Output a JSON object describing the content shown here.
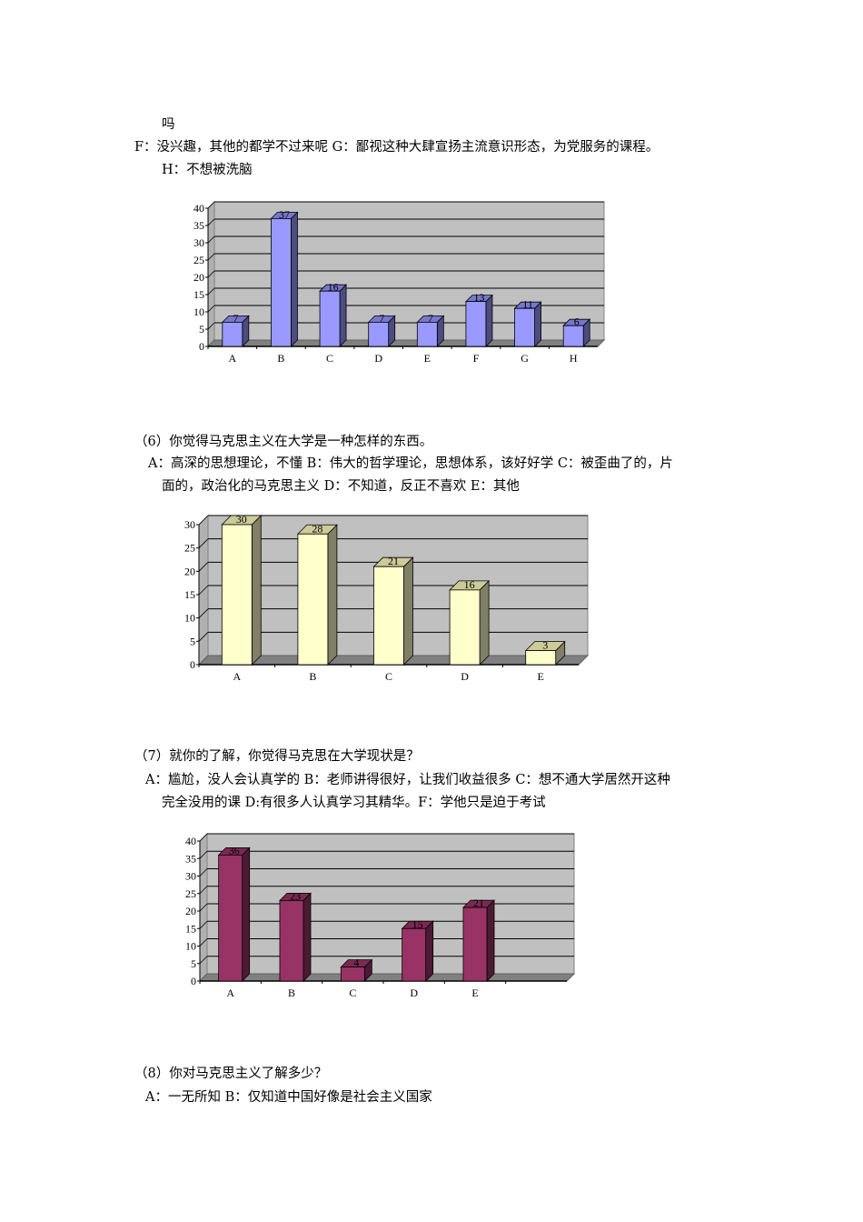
{
  "q5": {
    "lines": [
      "吗",
      "F：没兴趣，其他的都学不过来呢  G：鄙视这种大肆宣扬主流意识形态，为党服务的课程。",
      "H：不想被洗脑"
    ]
  },
  "q6": {
    "question": "（6）你觉得马克思主义在大学是一种怎样的东西。",
    "lines": [
      "A：高深的思想理论，不懂   B：伟大的哲学理论，思想体系，该好好学  C：被歪曲了的，片",
      "面的，政治化的马克思主义  D：不知道，反正不喜欢  E：其他"
    ]
  },
  "q7": {
    "question": "（7）就你的了解，你觉得马克思在大学现状是？",
    "lines": [
      "A：尴尬，没人会认真学的   B：老师讲得很好，让我们收益很多  C：想不通大学居然开这种",
      "完全没用的课  D:有很多人认真学习其精华。F：学他只是迫于考试"
    ]
  },
  "q8": {
    "question": "（8）你对马克思主义了解多少？",
    "lines": [
      "A：一无所知    B：仅知道中国好像是社会主义国家"
    ]
  },
  "chart_data": [
    {
      "type": "bar",
      "style": "3d-column",
      "categories": [
        "A",
        "B",
        "C",
        "D",
        "E",
        "F",
        "G",
        "H"
      ],
      "values": [
        7,
        37,
        16,
        7,
        7,
        13,
        11,
        6
      ],
      "ylim": [
        0,
        40
      ],
      "yticks": [
        0,
        5,
        10,
        15,
        20,
        25,
        30,
        35,
        40
      ],
      "grid": true,
      "colors": {
        "face": "#9999FF",
        "top": "#7777CC",
        "side": "#4C4C80",
        "wall": "#C0C0C0",
        "floor": "#808080"
      }
    },
    {
      "type": "bar",
      "style": "3d-column",
      "categories": [
        "A",
        "B",
        "C",
        "D",
        "E"
      ],
      "values": [
        30,
        28,
        21,
        16,
        3
      ],
      "ylim": [
        0,
        30
      ],
      "yticks": [
        0,
        5,
        10,
        15,
        20,
        25,
        30
      ],
      "grid": true,
      "colors": {
        "face": "#FFFFCC",
        "top": "#CCCC99",
        "side": "#808066",
        "wall": "#C0C0C0",
        "floor": "#808080"
      }
    },
    {
      "type": "bar",
      "style": "3d-column",
      "categories": [
        "A",
        "B",
        "C",
        "D",
        "E",
        ""
      ],
      "values": [
        36,
        23,
        4,
        15,
        21,
        null
      ],
      "ylim": [
        0,
        40
      ],
      "yticks": [
        0,
        5,
        10,
        15,
        20,
        25,
        30,
        35,
        40
      ],
      "grid": true,
      "colors": {
        "face": "#993366",
        "top": "#7A2952",
        "side": "#4D1A33",
        "wall": "#C0C0C0",
        "floor": "#808080"
      }
    }
  ]
}
